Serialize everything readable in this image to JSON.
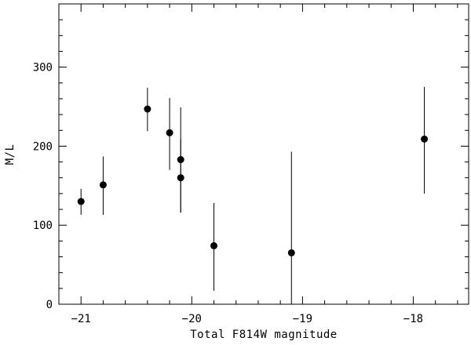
{
  "chart_data": {
    "type": "scatter",
    "title": "",
    "xlabel": "Total F814W magnitude",
    "ylabel": "M/L",
    "xlim": [
      -21.2,
      -17.5
    ],
    "ylim": [
      0,
      380
    ],
    "x_ticks": [
      {
        "value": -21,
        "label": "−21"
      },
      {
        "value": -20,
        "label": "−20"
      },
      {
        "value": -19,
        "label": "−19"
      },
      {
        "value": -18,
        "label": "−18"
      }
    ],
    "x_minor_step": 0.2,
    "y_ticks": [
      {
        "value": 0,
        "label": "0"
      },
      {
        "value": 100,
        "label": "100"
      },
      {
        "value": 200,
        "label": "200"
      },
      {
        "value": 300,
        "label": "300"
      }
    ],
    "y_minor_step": 20,
    "grid": false,
    "legend": "none",
    "marker_color": "#000000",
    "series": [
      {
        "points": [
          {
            "x": -21.0,
            "y": 130,
            "y_low": 113,
            "y_high": 146
          },
          {
            "x": -20.8,
            "y": 151,
            "y_low": 113,
            "y_high": 187
          },
          {
            "x": -20.4,
            "y": 247,
            "y_low": 219,
            "y_high": 274
          },
          {
            "x": -20.2,
            "y": 217,
            "y_low": 170,
            "y_high": 261
          },
          {
            "x": -20.1,
            "y": 183,
            "y_low": 116,
            "y_high": 249
          },
          {
            "x": -20.1,
            "y": 160,
            "y_low": 116,
            "y_high": 209
          },
          {
            "x": -19.8,
            "y": 74,
            "y_low": 17,
            "y_high": 128
          },
          {
            "x": -19.1,
            "y": 65,
            "y_low": 0,
            "y_high": 193
          },
          {
            "x": -17.9,
            "y": 209,
            "y_low": 140,
            "y_high": 275
          }
        ]
      }
    ]
  }
}
